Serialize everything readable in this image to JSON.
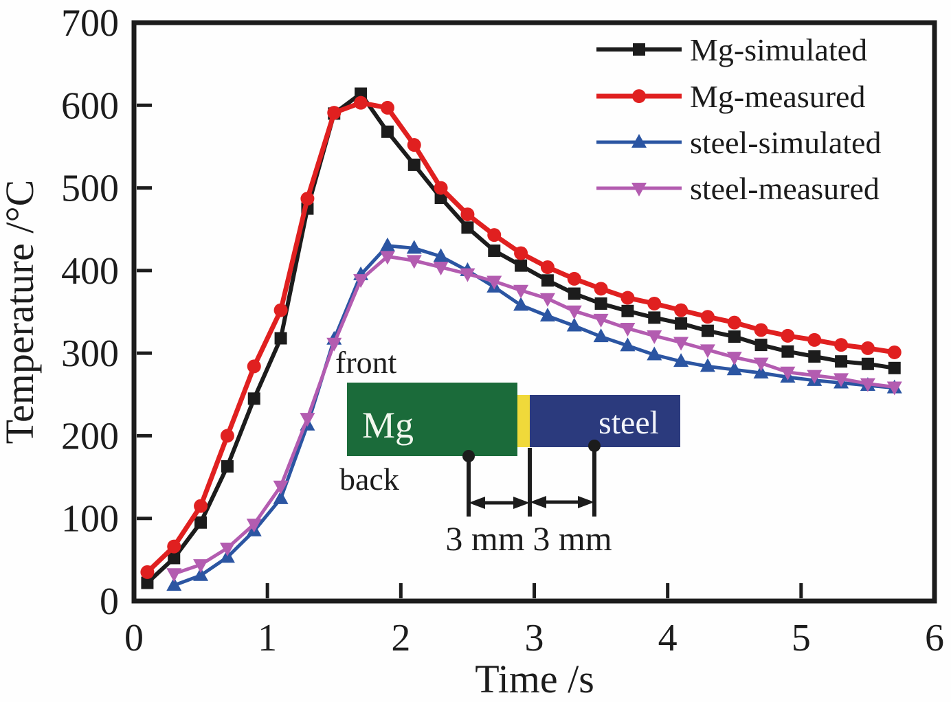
{
  "figure": {
    "background": "#fefefe",
    "frame_color": "#1c1c1c"
  },
  "chart_data": {
    "type": "line",
    "title": "",
    "xlabel": "Time /s",
    "ylabel": "Temperature /°C",
    "xlim": [
      0,
      6
    ],
    "ylim": [
      0,
      700
    ],
    "xticks": [
      0,
      1,
      2,
      3,
      4,
      5,
      6
    ],
    "yticks": [
      0,
      100,
      200,
      300,
      400,
      500,
      600,
      700
    ],
    "grid": false,
    "legend_position": "top-right",
    "series": [
      {
        "name": "Mg-simulated",
        "color": "#1c1c1c",
        "marker": "square",
        "line_width": 6,
        "points": [
          [
            0.1,
            22
          ],
          [
            0.3,
            52
          ],
          [
            0.5,
            95
          ],
          [
            0.7,
            163
          ],
          [
            0.9,
            245
          ],
          [
            1.1,
            318
          ],
          [
            1.3,
            475
          ],
          [
            1.5,
            590
          ],
          [
            1.7,
            614
          ],
          [
            1.9,
            568
          ],
          [
            2.1,
            528
          ],
          [
            2.3,
            488
          ],
          [
            2.5,
            452
          ],
          [
            2.7,
            424
          ],
          [
            2.9,
            406
          ],
          [
            3.1,
            388
          ],
          [
            3.3,
            372
          ],
          [
            3.5,
            360
          ],
          [
            3.7,
            351
          ],
          [
            3.9,
            343
          ],
          [
            4.1,
            336
          ],
          [
            4.3,
            327
          ],
          [
            4.5,
            320
          ],
          [
            4.7,
            310
          ],
          [
            4.9,
            302
          ],
          [
            5.1,
            296
          ],
          [
            5.3,
            290
          ],
          [
            5.5,
            287
          ],
          [
            5.7,
            282
          ]
        ]
      },
      {
        "name": "Mg-measured",
        "color": "#e02020",
        "marker": "circle",
        "line_width": 7,
        "points": [
          [
            0.1,
            35
          ],
          [
            0.3,
            66
          ],
          [
            0.5,
            115
          ],
          [
            0.7,
            200
          ],
          [
            0.9,
            284
          ],
          [
            1.1,
            352
          ],
          [
            1.3,
            487
          ],
          [
            1.5,
            591
          ],
          [
            1.7,
            603
          ],
          [
            1.9,
            597
          ],
          [
            2.1,
            552
          ],
          [
            2.3,
            500
          ],
          [
            2.5,
            468
          ],
          [
            2.7,
            443
          ],
          [
            2.9,
            421
          ],
          [
            3.1,
            404
          ],
          [
            3.3,
            390
          ],
          [
            3.5,
            378
          ],
          [
            3.7,
            367
          ],
          [
            3.9,
            360
          ],
          [
            4.1,
            352
          ],
          [
            4.3,
            344
          ],
          [
            4.5,
            337
          ],
          [
            4.7,
            328
          ],
          [
            4.9,
            321
          ],
          [
            5.1,
            316
          ],
          [
            5.3,
            310
          ],
          [
            5.5,
            306
          ],
          [
            5.7,
            301
          ]
        ]
      },
      {
        "name": "steel-simulated",
        "color": "#2b55a2",
        "marker": "triangle-up",
        "line_width": 5,
        "points": [
          [
            0.3,
            19
          ],
          [
            0.5,
            31
          ],
          [
            0.7,
            53
          ],
          [
            0.9,
            85
          ],
          [
            1.1,
            124
          ],
          [
            1.3,
            213
          ],
          [
            1.5,
            317
          ],
          [
            1.7,
            395
          ],
          [
            1.9,
            430
          ],
          [
            2.1,
            427
          ],
          [
            2.3,
            417
          ],
          [
            2.5,
            400
          ],
          [
            2.7,
            380
          ],
          [
            2.9,
            358
          ],
          [
            3.1,
            345
          ],
          [
            3.3,
            333
          ],
          [
            3.5,
            320
          ],
          [
            3.7,
            309
          ],
          [
            3.9,
            298
          ],
          [
            4.1,
            290
          ],
          [
            4.3,
            284
          ],
          [
            4.5,
            280
          ],
          [
            4.7,
            276
          ],
          [
            4.9,
            271
          ],
          [
            5.1,
            267
          ],
          [
            5.3,
            264
          ],
          [
            5.5,
            261
          ],
          [
            5.7,
            258
          ]
        ]
      },
      {
        "name": "steel-measured",
        "color": "#b35cb0",
        "marker": "triangle-down",
        "line_width": 5,
        "points": [
          [
            0.3,
            33
          ],
          [
            0.5,
            44
          ],
          [
            0.7,
            64
          ],
          [
            0.9,
            93
          ],
          [
            1.1,
            139
          ],
          [
            1.3,
            221
          ],
          [
            1.5,
            312
          ],
          [
            1.7,
            389
          ],
          [
            1.9,
            417
          ],
          [
            2.1,
            412
          ],
          [
            2.3,
            404
          ],
          [
            2.5,
            396
          ],
          [
            2.7,
            387
          ],
          [
            2.9,
            376
          ],
          [
            3.1,
            366
          ],
          [
            3.3,
            351
          ],
          [
            3.5,
            341
          ],
          [
            3.7,
            330
          ],
          [
            3.9,
            321
          ],
          [
            4.1,
            313
          ],
          [
            4.3,
            304
          ],
          [
            4.5,
            295
          ],
          [
            4.7,
            288
          ],
          [
            4.9,
            277
          ],
          [
            5.1,
            273
          ],
          [
            5.3,
            269
          ],
          [
            5.5,
            263
          ],
          [
            5.7,
            259
          ]
        ]
      }
    ]
  },
  "inset": {
    "front_label": "front",
    "back_label": "back",
    "mg_label": "Mg",
    "steel_label": "steel",
    "dim1_label": "3 mm",
    "dim2_label": "3 mm",
    "mg_color": "#1b6b3a",
    "interlayer_color": "#f0d93a",
    "steel_color": "#2b3a7d"
  }
}
